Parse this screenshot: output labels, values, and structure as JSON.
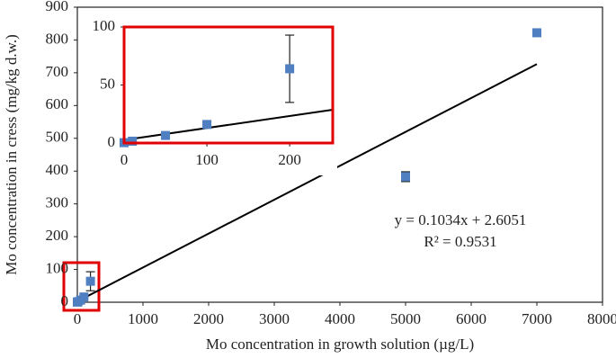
{
  "chart_data": {
    "type": "scatter",
    "x_label": "Mo concentration in growth solution (µg/L)",
    "y_label": "Mo concentration in cress (mg/kg d.w.)",
    "xlim": [
      0,
      8000
    ],
    "xticks": [
      0,
      1000,
      2000,
      3000,
      4000,
      5000,
      6000,
      7000,
      8000
    ],
    "ylim": [
      0,
      900
    ],
    "yticks": [
      0,
      100,
      200,
      300,
      400,
      500,
      600,
      700,
      800,
      900
    ],
    "series": [
      {
        "color": "#4f7fc0",
        "x": [
          0,
          10,
          50,
          100,
          200,
          5000,
          7000
        ],
        "values": [
          0.3,
          1.6,
          6.5,
          16,
          64,
          383,
          822
        ],
        "errors": [
          null,
          null,
          null,
          2,
          29,
          15,
          null
        ]
      }
    ],
    "trendline": {
      "slope": 0.1034,
      "intercept": 2.6051
    },
    "annotations": [
      "y = 0.1034x + 2.6051",
      "R² = 0.9531"
    ],
    "inset": {
      "xlim": [
        0,
        252
      ],
      "xticks": [
        0,
        100,
        200
      ],
      "ylim": [
        0,
        100
      ],
      "yticks": [
        0,
        50,
        100
      ]
    }
  }
}
